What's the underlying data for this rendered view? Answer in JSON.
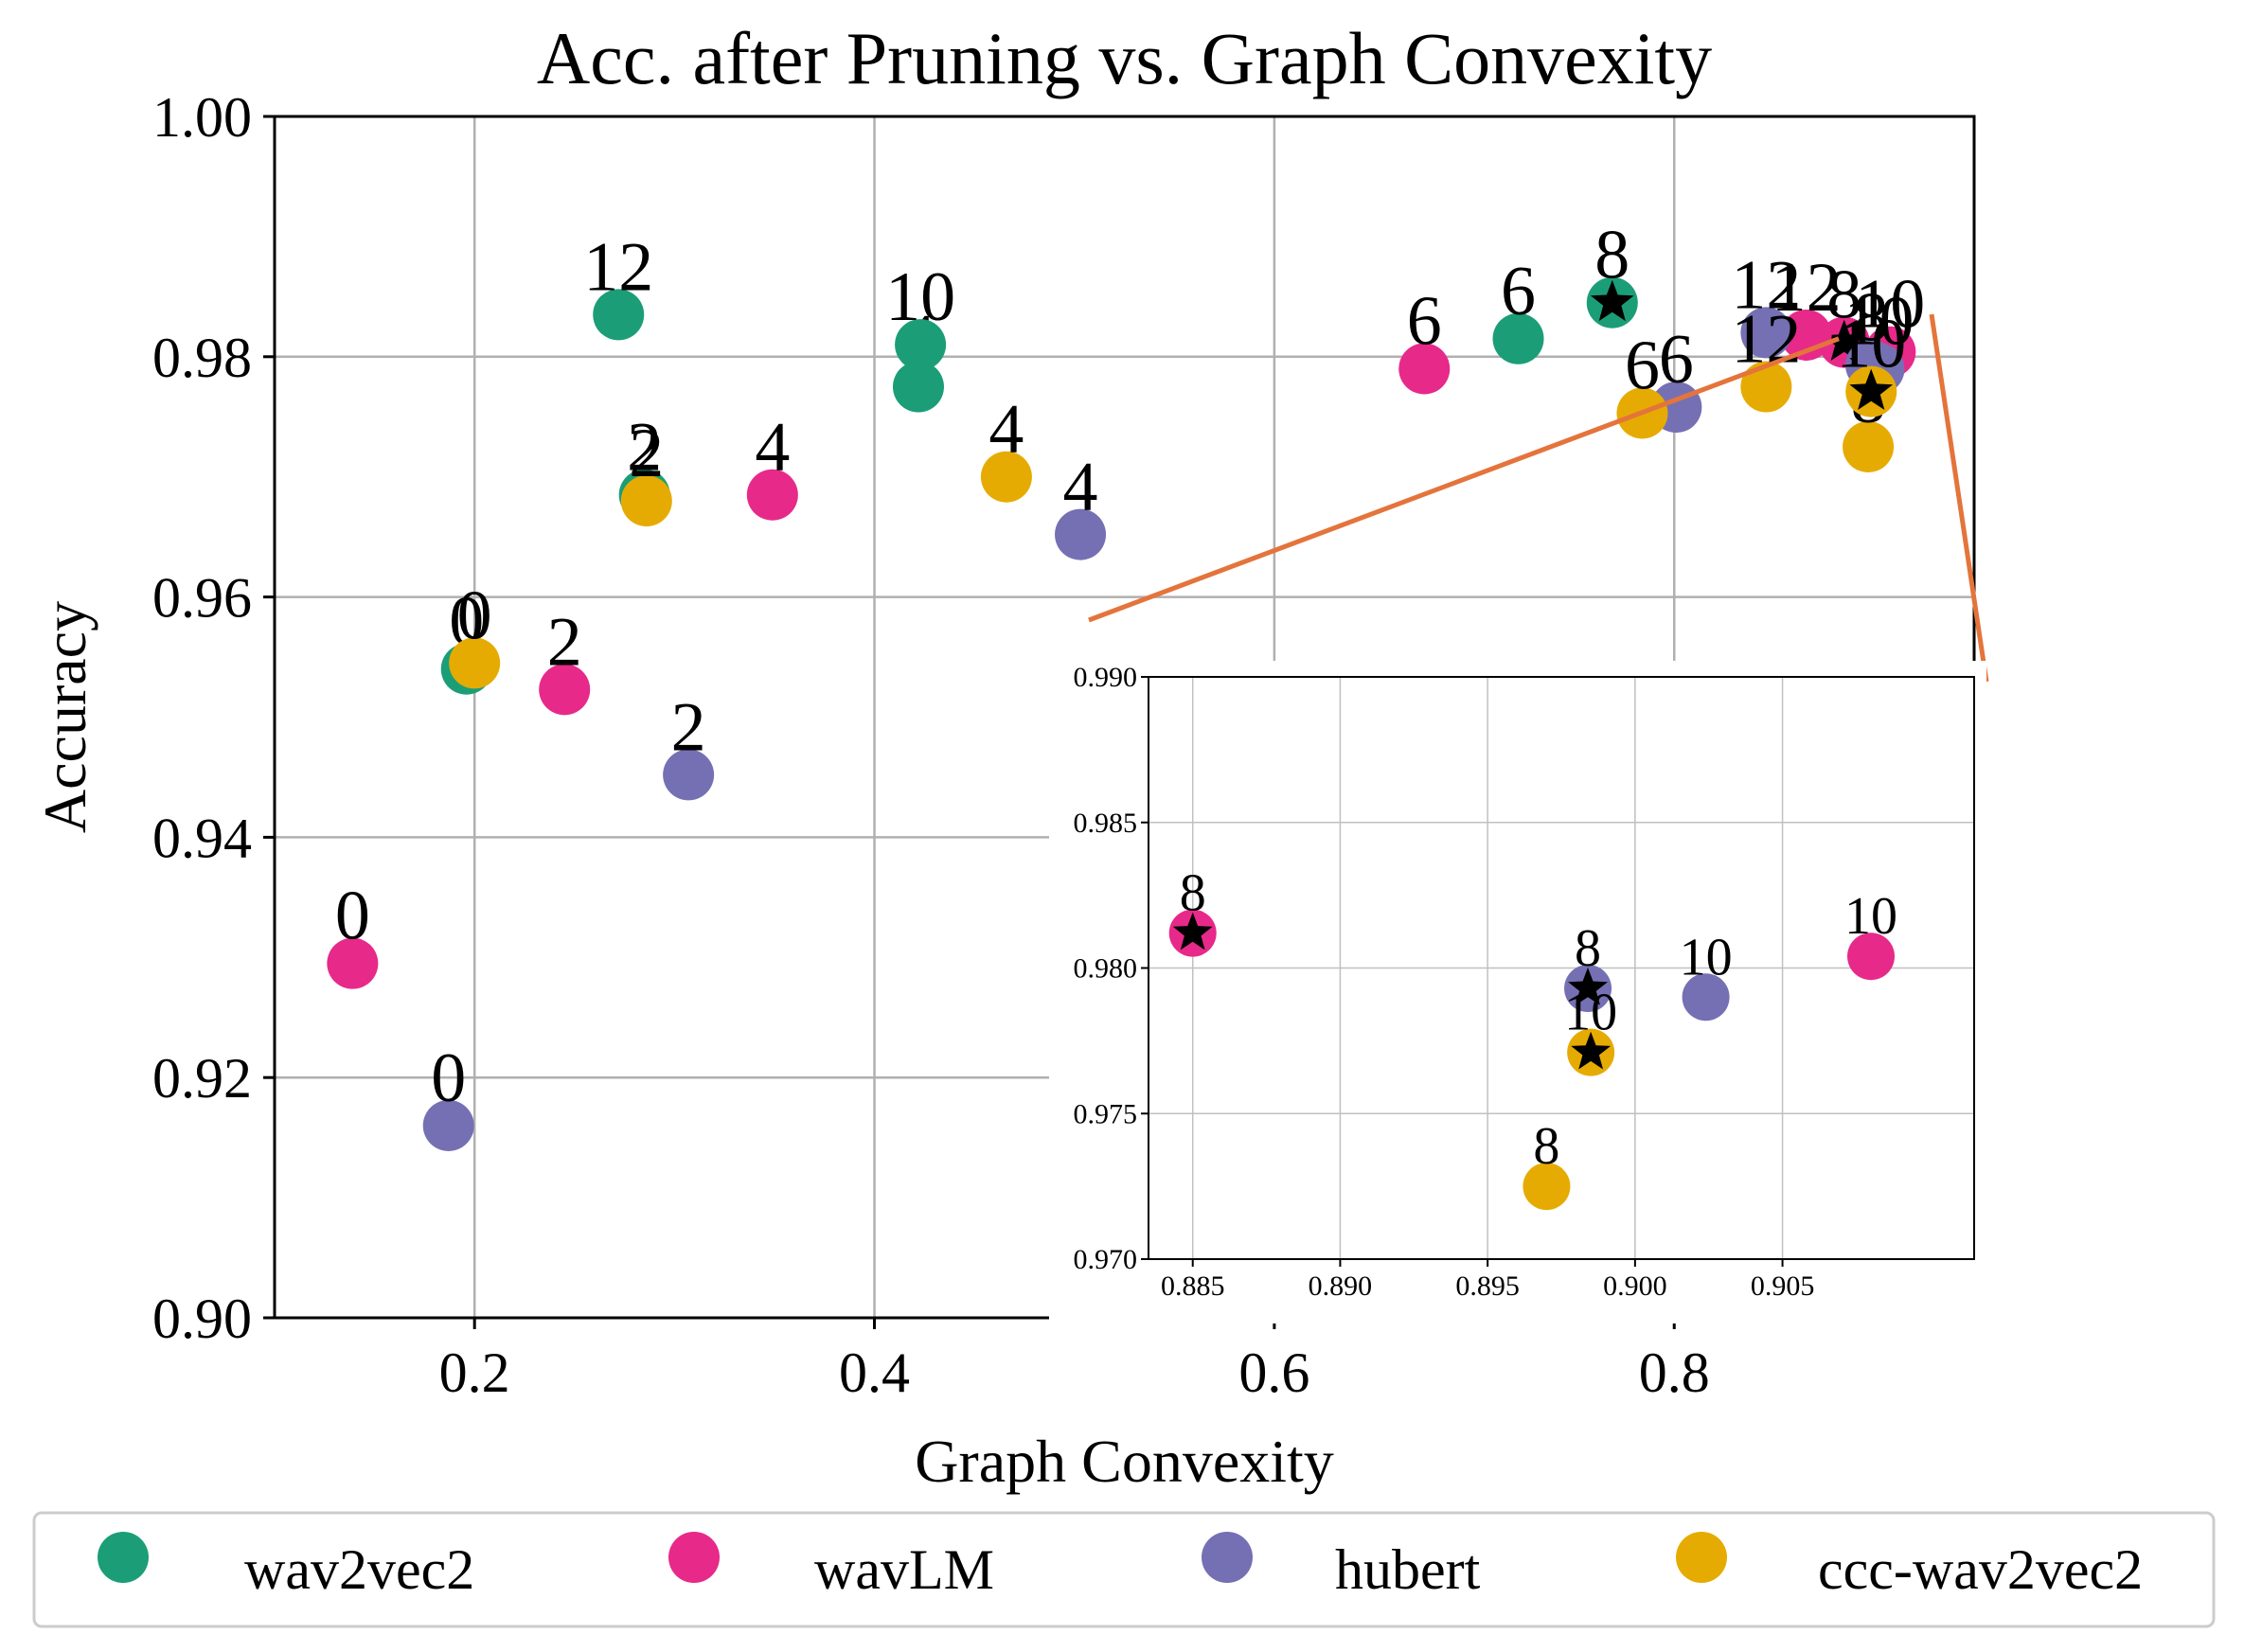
{
  "chart_data": [
    {
      "type": "scatter",
      "title": "Acc. after Pruning vs. Graph Convexity",
      "xlabel": "Graph Convexity",
      "ylabel": "Accuracy",
      "xlim": [
        0.1,
        0.95
      ],
      "ylim": [
        0.9,
        1.0
      ],
      "xticks": [
        0.2,
        0.4,
        0.6,
        0.8
      ],
      "xtick_labels": [
        "0.2",
        "0.4",
        "0.6",
        "0.8"
      ],
      "yticks": [
        0.9,
        0.92,
        0.94,
        0.96,
        0.98,
        1.0
      ],
      "ytick_labels": [
        "0.90",
        "0.92",
        "0.94",
        "0.96",
        "0.98",
        "1.00"
      ],
      "grid": true,
      "legend": "bottom, outside, 4 columns",
      "series": [
        {
          "name": "wav2vec2",
          "color": "#1b9e77",
          "points": [
            {
              "x": 0.196,
              "y": 0.954,
              "label": "0"
            },
            {
              "x": 0.285,
              "y": 0.9685,
              "label": "2"
            },
            {
              "x": 0.422,
              "y": 0.9775,
              "label": "4"
            },
            {
              "x": 0.722,
              "y": 0.9815,
              "label": "6"
            },
            {
              "x": 0.769,
              "y": 0.9845,
              "label": "8",
              "star": true
            },
            {
              "x": 0.423,
              "y": 0.981,
              "label": "10"
            },
            {
              "x": 0.272,
              "y": 0.9835,
              "label": "12"
            }
          ]
        },
        {
          "name": "wavLM",
          "color": "#e7298a",
          "points": [
            {
              "x": 0.139,
              "y": 0.9295,
              "label": "0"
            },
            {
              "x": 0.245,
              "y": 0.9523,
              "label": "2"
            },
            {
              "x": 0.349,
              "y": 0.9685,
              "label": "4"
            },
            {
              "x": 0.675,
              "y": 0.979,
              "label": "6"
            },
            {
              "x": 0.885,
              "y": 0.9812,
              "label": "8",
              "star": true
            },
            {
              "x": 0.908,
              "y": 0.9804,
              "label": "10"
            },
            {
              "x": 0.866,
              "y": 0.9818,
              "label": "12"
            }
          ]
        },
        {
          "name": "hubert",
          "color": "#7570b3",
          "points": [
            {
              "x": 0.187,
              "y": 0.916,
              "label": "0"
            },
            {
              "x": 0.307,
              "y": 0.9452,
              "label": "2"
            },
            {
              "x": 0.503,
              "y": 0.9652,
              "label": "4"
            },
            {
              "x": 0.801,
              "y": 0.9758,
              "label": "6"
            },
            {
              "x": 0.8984,
              "y": 0.9793,
              "label": "8",
              "star": true
            },
            {
              "x": 0.9024,
              "y": 0.979,
              "label": "10"
            },
            {
              "x": 0.846,
              "y": 0.982,
              "label": "12"
            }
          ]
        },
        {
          "name": "ccc-wav2vec2",
          "color": "#e6ab02",
          "points": [
            {
              "x": 0.2,
              "y": 0.9545,
              "label": "0"
            },
            {
              "x": 0.286,
              "y": 0.968,
              "label": "2"
            },
            {
              "x": 0.466,
              "y": 0.97,
              "label": "4"
            },
            {
              "x": 0.784,
              "y": 0.9753,
              "label": "6"
            },
            {
              "x": 0.897,
              "y": 0.9725,
              "label": "8"
            },
            {
              "x": 0.8985,
              "y": 0.9771,
              "label": "10",
              "star": true
            },
            {
              "x": 0.846,
              "y": 0.9775,
              "label": "12"
            }
          ]
        }
      ]
    },
    {
      "type": "scatter",
      "title": "",
      "xlim": [
        0.8835,
        0.9115
      ],
      "ylim": [
        0.97,
        0.99
      ],
      "xticks": [
        0.885,
        0.89,
        0.895,
        0.9,
        0.905
      ],
      "xtick_labels": [
        "0.885",
        "0.890",
        "0.895",
        "0.900",
        "0.905"
      ],
      "yticks": [
        0.97,
        0.975,
        0.98,
        0.985,
        0.99
      ],
      "ytick_labels": [
        "0.970",
        "0.975",
        "0.980",
        "0.985",
        "0.990"
      ],
      "grid": true,
      "points": [
        {
          "series": "wavLM",
          "x": 0.885,
          "y": 0.9812,
          "label": "8",
          "star": true
        },
        {
          "series": "wavLM",
          "x": 0.908,
          "y": 0.9804,
          "label": "10"
        },
        {
          "series": "hubert",
          "x": 0.8984,
          "y": 0.9793,
          "label": "8",
          "star": true
        },
        {
          "series": "hubert",
          "x": 0.9024,
          "y": 0.979,
          "label": "10"
        },
        {
          "series": "ccc-wav2vec2",
          "x": 0.8985,
          "y": 0.9771,
          "label": "10",
          "star": true
        },
        {
          "series": "ccc-wav2vec2",
          "x": 0.897,
          "y": 0.9725,
          "label": "8"
        }
      ]
    }
  ],
  "colors": {
    "wav2vec2": "#1b9e77",
    "wavLM": "#e7298a",
    "hubert": "#7570b3",
    "ccc-wav2vec2": "#e6ab02",
    "zoom_connector": "#e4743b"
  }
}
